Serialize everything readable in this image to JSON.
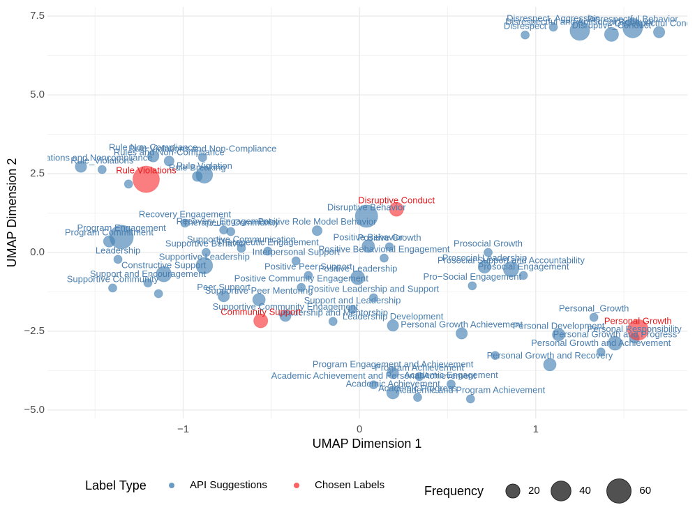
{
  "chart_data": {
    "type": "scatter",
    "x_label": "UMAP Dimension 1",
    "y_label": "UMAP Dimension 2",
    "xlim": [
      -1.77,
      1.86
    ],
    "ylim": [
      -5.27,
      7.79
    ],
    "xticks": [
      {
        "value": -1,
        "label": "−1"
      },
      0,
      1
    ],
    "yticks": [
      {
        "value": -5,
        "label": "−5.0"
      },
      {
        "value": -2.5,
        "label": "−2.5"
      },
      {
        "value": 0,
        "label": "0.0"
      },
      {
        "value": 2.5,
        "label": "2.5"
      },
      {
        "value": 5,
        "label": "5.0"
      },
      {
        "value": 7.5,
        "label": "7.5"
      }
    ],
    "grid": true,
    "legend_title": "Label Type",
    "size_legend": {
      "title": "Frequency",
      "values": [
        20,
        40,
        60
      ]
    },
    "series": [
      {
        "name": "API Suggestions",
        "color": "#4682b4",
        "label_color": "#4a7fb0",
        "x": [
          1.25,
          1.1,
          1.43,
          1.55,
          1.7,
          0.94,
          -1.58,
          -1.46,
          -1.31,
          -1.17,
          -1.08,
          -0.88,
          -0.92,
          -0.89,
          -1.35,
          -1.42,
          -1.37,
          -1.4,
          -1.11,
          -1.2,
          -1.14,
          -0.77,
          -0.88,
          -0.87,
          -0.99,
          -0.77,
          -0.73,
          -0.52,
          -0.67,
          -0.57,
          -0.42,
          -0.36,
          -0.24,
          -0.29,
          -0.33,
          0.08,
          -0.01,
          -0.04,
          -0.15,
          0.19,
          0.05,
          0.17,
          0.14,
          0.04,
          0.73,
          0.71,
          0.86,
          0.93,
          0.64,
          1.33,
          1.45,
          1.37,
          1.56,
          1.13,
          0.58,
          1.08,
          0.77,
          0.19,
          0.19,
          0.08,
          0.33,
          0.63,
          0.52,
          0.34
        ],
        "y": [
          7.04,
          7.15,
          6.92,
          7.12,
          6.99,
          6.9,
          2.72,
          2.63,
          2.17,
          3.05,
          2.9,
          2.46,
          2.41,
          3.01,
          0.49,
          0.35,
          -0.22,
          -1.13,
          -0.69,
          -0.97,
          -1.31,
          -1.39,
          -0.42,
          0.0,
          0.93,
          0.71,
          0.66,
          0.04,
          0.13,
          -1.5,
          -2.01,
          -0.27,
          0.69,
          -0.73,
          -1.11,
          -1.44,
          -0.8,
          -1.81,
          -2.19,
          -2.32,
          0.2,
          0.18,
          -0.18,
          1.15,
          0.0,
          -0.46,
          -0.53,
          -0.73,
          -1.06,
          -2.06,
          -2.88,
          -3.16,
          -2.72,
          -2.61,
          -2.57,
          -3.56,
          -3.27,
          -3.83,
          -4.45,
          -4.2,
          -4.6,
          -4.65,
          -4.18,
          -3.94
        ],
        "sizes": [
          39,
          7,
          20,
          39,
          13,
          7,
          13,
          7,
          7,
          13,
          10,
          28,
          10,
          7,
          57,
          13,
          7,
          7,
          24,
          7,
          7,
          13,
          28,
          7,
          7,
          7,
          7,
          7,
          7,
          16,
          13,
          7,
          10,
          7,
          7,
          7,
          20,
          7,
          7,
          13,
          16,
          7,
          7,
          51,
          7,
          16,
          24,
          7,
          7,
          7,
          20,
          7,
          10,
          16,
          13,
          16,
          7,
          13,
          16,
          7,
          7,
          7,
          7,
          7
        ],
        "labels": [
          "Disrespectful and Antisocial Behavior",
          "Disrespect_Aggression",
          "Disruptive_Conduct",
          "Disrespectful Behavior",
          "Disrespectful Conduct",
          "Disrespect",
          "Rule Violations and Noncompliance",
          "Rule_Violations",
          null,
          "Rule Non-Compliance",
          "Rules and Non-Compliance",
          "Rule Violation",
          "Rule Breaking",
          "Rule Violations and Non-Compliance",
          "Program Engagement",
          "Program Commitment",
          "Leadership",
          "Supportive Community",
          "Constructive Support",
          "Support and Encouragement",
          null,
          "Peer Support",
          "Supportive Leadership",
          "Supportive Behavior",
          "Recovery Engagement",
          "Recovery_Engagement",
          "Therapeutic Community",
          "Therapeutic Engagement",
          "Supportive Communication",
          "Supportive Peer Mentoring",
          "Supportive Community Engagement",
          "Interpersonal Support",
          "Positive Role Model Behavior",
          "Positive Peer Support",
          "Positive Community Engagement",
          "Positive Leadership and Support",
          "Positive Leadership",
          "Support and Leadership",
          "Leadership and Mentorship",
          "Leadership Development",
          "Positive Behavior",
          "Positive Growth",
          "Positive Behavioral Engagement",
          "Disruptive Behavior",
          "Prosocial Growth",
          "Prosocial Leadership",
          "Prosocial Support and Accountability",
          "Prosocial Engagement",
          "Pro−Social Engagement",
          "Personal_Growth",
          "Personal Growth and Progress",
          "Personal Growth and Achievement",
          "Personal Responsibility",
          "Personal Development",
          "Personal Growth Achievement",
          "Personal Growth and Recovery",
          null,
          "Program Engagement and Achievement",
          "Academic Achievement",
          "Academic Achievement and Personal Achievement",
          "Academic Progress",
          "Academic and Program Achievement",
          "Academic Engagement",
          "Program Achievement"
        ]
      },
      {
        "name": "Chosen Labels",
        "color": "#f8393c",
        "label_color": "#e41a1c",
        "x": [
          -1.21,
          0.21,
          -0.56,
          1.58
        ],
        "y": [
          2.32,
          1.37,
          -2.17,
          -2.46
        ],
        "sizes": [
          71,
          20,
          20,
          44
        ],
        "labels": [
          "Rule Violations",
          "Disruptive Conduct",
          "Community Support",
          "Personal Growth"
        ]
      }
    ]
  }
}
